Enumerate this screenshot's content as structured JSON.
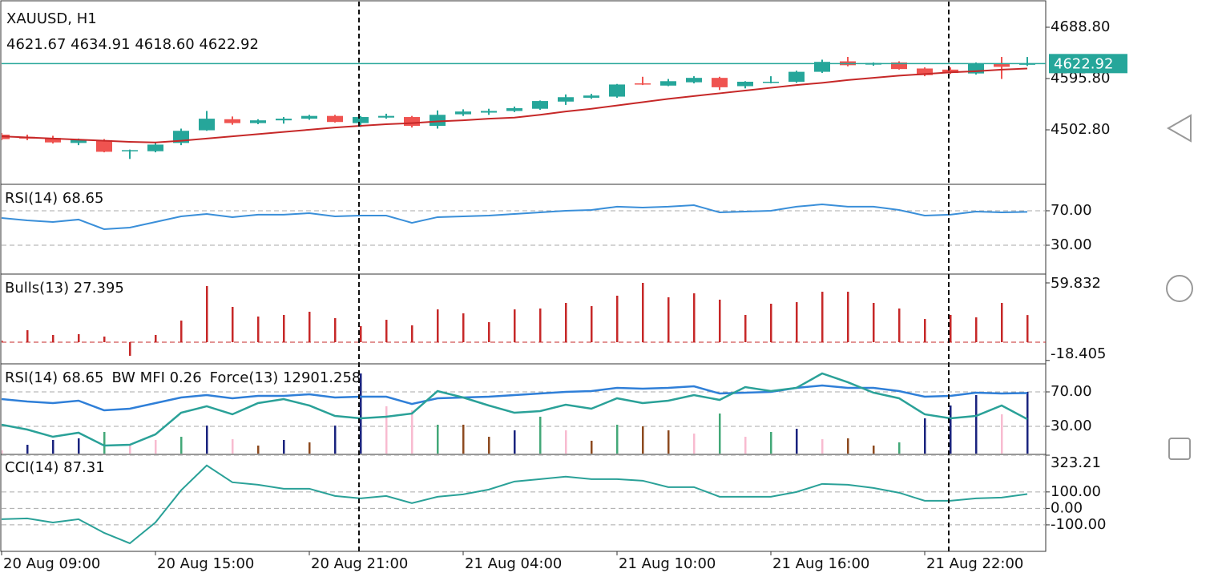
{
  "chart_data": [
    {
      "type": "candlestick",
      "title": "XAUUSD, H1",
      "subtitle": "4621.67 4634.91 4618.60 4622.92",
      "open": [
        4494,
        4490,
        4488,
        4479,
        4484,
        4464,
        4464,
        4479,
        4502,
        4522,
        4515,
        4520,
        4523,
        4528,
        4515,
        4525,
        4526,
        4510,
        4531,
        4534,
        4537,
        4541,
        4554,
        4561,
        4563,
        4587,
        4583,
        4589,
        4597,
        4582,
        4589,
        4590,
        4608,
        4627,
        4621,
        4625,
        4614,
        4612,
        4605,
        4622,
        4621.67
      ],
      "high": [
        4497,
        4494,
        4492,
        4487,
        4486,
        4467,
        4480,
        4505,
        4537,
        4527,
        4522,
        4526,
        4530,
        4530,
        4528,
        4532,
        4528,
        4538,
        4540,
        4541,
        4545,
        4556,
        4567,
        4568,
        4586,
        4599,
        4595,
        4600,
        4599,
        4591,
        4600,
        4610,
        4630,
        4635,
        4625,
        4627,
        4616,
        4616,
        4625,
        4635,
        4634.91
      ],
      "low": [
        4484,
        4484,
        4478,
        4475,
        4462,
        4450,
        4462,
        4475,
        4501,
        4512,
        4513,
        4514,
        4521,
        4516,
        4508,
        4523,
        4507,
        4505,
        4528,
        4530,
        4535,
        4539,
        4548,
        4559,
        4561,
        4584,
        4582,
        4587,
        4575,
        4578,
        4587,
        4588,
        4606,
        4618,
        4619,
        4612,
        4600,
        4604,
        4603,
        4595,
        4618.6
      ],
      "close": [
        4486,
        4487,
        4480,
        4485,
        4463,
        4466,
        4476,
        4501,
        4523,
        4515,
        4520,
        4523,
        4528,
        4517,
        4526,
        4528,
        4510,
        4530,
        4536,
        4537,
        4542,
        4555,
        4562,
        4565,
        4585,
        4585,
        4591,
        4597,
        4580,
        4590,
        4590,
        4608,
        4626,
        4620,
        4624,
        4613,
        4602,
        4606,
        4622,
        4617,
        4622.92
      ],
      "up_color": "#26a69a",
      "down_color": "#ef5350",
      "ma": {
        "color": "#c62828",
        "values": [
          4491,
          4489,
          4487,
          4485,
          4483,
          4481,
          4480,
          4483,
          4487,
          4491,
          4495,
          4499,
          4503,
          4507,
          4510,
          4513,
          4515,
          4518,
          4520,
          4523,
          4525,
          4530,
          4536,
          4541,
          4547,
          4553,
          4559,
          4564,
          4569,
          4574,
          4579,
          4584,
          4588,
          4593,
          4597,
          4601,
          4604,
          4607,
          4609,
          4612,
          4614
        ]
      },
      "price_line_color": "#26a69a",
      "ylim": [
        4406.9,
        4738.2
      ],
      "yticks": [
        {
          "value": 4502.8,
          "label": "4502.80"
        },
        {
          "value": 4595.8,
          "label": "4595.80"
        },
        {
          "value": 4688.8,
          "label": "4688.80"
        }
      ],
      "grid": false
    },
    {
      "type": "line",
      "series": [
        {
          "name": "RSI(14) 68.65",
          "kind": "line",
          "color": "#3a8fd9",
          "values": [
            61.6,
            58.8,
            57.0,
            59.8,
            48.6,
            50.5,
            57.0,
            63.5,
            66.3,
            62.6,
            65.4,
            65.4,
            67.2,
            63.5,
            64.4,
            64.4,
            56.0,
            62.6,
            63.5,
            64.4,
            66.3,
            68.1,
            70.0,
            70.9,
            74.7,
            73.7,
            74.7,
            76.5,
            68.1,
            69.1,
            70.0,
            74.7,
            77.4,
            74.7,
            74.7,
            70.9,
            64.4,
            65.4,
            69.1,
            68.1,
            68.65
          ]
        }
      ],
      "ylim": [
        -1.6,
        98.8
      ],
      "yticks": [
        {
          "value": 30,
          "label": "30.00"
        },
        {
          "value": 70,
          "label": "70.00"
        }
      ],
      "grid": true
    },
    {
      "type": "bar",
      "series": [
        {
          "name": "Bulls(13) 27.395",
          "kind": "bar",
          "color": "#c62828",
          "values": [
            1.6,
            12.1,
            7.3,
            8.1,
            5.7,
            -13.7,
            7.3,
            21.8,
            56.6,
            35.6,
            25.9,
            27.5,
            30.7,
            24.3,
            16.2,
            22.6,
            17.0,
            33.1,
            29.1,
            20.2,
            33.1,
            34.0,
            39.6,
            36.4,
            46.9,
            59.832,
            45.3,
            49.3,
            42.9,
            27.5,
            38.8,
            40.4,
            50.9,
            50.9,
            39.6,
            34.0,
            23.4,
            27.5,
            25.1,
            39.6,
            27.395
          ]
        }
      ],
      "ylim": [
        -20.2,
        67.1
      ],
      "yticks": [
        59.832,
        -18.405
      ],
      "grid": false,
      "zero_line": true
    },
    {
      "type": "mixed",
      "series": [
        {
          "name": "RSI(14) 68.65",
          "kind": "line",
          "color": "#2f7fd8",
          "values": [
            61.6,
            58.8,
            57.0,
            59.8,
            48.6,
            50.5,
            57.0,
            63.5,
            66.3,
            62.6,
            65.4,
            65.4,
            67.2,
            63.5,
            64.4,
            64.4,
            56.0,
            62.6,
            63.5,
            64.4,
            66.3,
            68.1,
            70.0,
            70.9,
            74.7,
            73.7,
            74.7,
            76.5,
            68.1,
            69.1,
            70.0,
            74.7,
            77.4,
            74.7,
            74.7,
            70.9,
            64.4,
            65.4,
            69.1,
            68.1,
            68.65
          ]
        },
        {
          "name": "BW MFI 0.26",
          "kind": "bar",
          "colors": [
            "#f8bbd0",
            "#1a237e",
            "#1a237e",
            "#1a237e",
            "#43a878",
            "#f8bbd0",
            "#f8bbd0",
            "#43a878",
            "#1a237e",
            "#f8bbd0",
            "#8d4a1f",
            "#1a237e",
            "#8d4a1f",
            "#1a237e",
            "#1a237e",
            "#f8bbd0",
            "#f8bbd0",
            "#43a878",
            "#8d4a1f",
            "#8d4a1f",
            "#1a237e",
            "#43a878",
            "#f8bbd0",
            "#8d4a1f",
            "#43a878",
            "#8d4a1f",
            "#8d4a1f",
            "#f8bbd0",
            "#43a878",
            "#f8bbd0",
            "#43a878",
            "#1a237e",
            "#f8bbd0",
            "#8d4a1f",
            "#8d4a1f",
            "#43a878",
            "#1a237e",
            "#1a237e",
            "#1a237e",
            "#f8bbd0",
            "#1a237e"
          ],
          "values": [
            2.1,
            8.6,
            14.2,
            16.1,
            23.5,
            8.6,
            14.2,
            17.9,
            30.9,
            15.1,
            7.7,
            14.2,
            11.4,
            30.9,
            91.4,
            53.3,
            48.6,
            31.9,
            31.9,
            17.9,
            25.4,
            41.2,
            25.4,
            13.3,
            31.9,
            30.0,
            25.4,
            21.6,
            44.9,
            17.9,
            23.5,
            27.2,
            15.1,
            16.1,
            7.7,
            11.4,
            39.3,
            54.2,
            66.3,
            44.0,
            70.0
          ]
        },
        {
          "name": "Force(13) 12901.258",
          "kind": "line",
          "color": "#2aa198",
          "values": [
            31.9,
            26.3,
            17.9,
            22.6,
            7.7,
            8.6,
            20.7,
            45.8,
            53.3,
            44.0,
            57.0,
            61.6,
            54.2,
            42.1,
            39.3,
            41.2,
            44.9,
            70.9,
            63.5,
            54.2,
            45.8,
            47.7,
            55.1,
            50.5,
            62.6,
            57.0,
            59.8,
            66.3,
            60.7,
            75.6,
            70.9,
            74.7,
            91.4,
            81.2,
            69.1,
            62.6,
            44.0,
            39.3,
            42.1,
            54.2,
            38.4
          ]
        }
      ],
      "ylim": [
        -1.6,
        100.7
      ],
      "yticks": [
        {
          "value": 30,
          "label": "30.00"
        },
        {
          "value": 70,
          "label": "70.00"
        }
      ],
      "grid": true
    },
    {
      "type": "line",
      "series": [
        {
          "name": "CCI(14) 87.31",
          "kind": "line",
          "color": "#2aa198",
          "values": [
            -65.9,
            -61.0,
            -85.4,
            -65.9,
            -148.8,
            -212.2,
            -85.4,
            109.8,
            261.0,
            158.5,
            143.9,
            119.5,
            119.5,
            75.6,
            61.0,
            75.6,
            31.7,
            70.7,
            85.4,
            114.6,
            163.4,
            178.0,
            192.7,
            178.0,
            178.0,
            168.3,
            129.3,
            129.3,
            70.7,
            70.7,
            70.7,
            100.0,
            148.8,
            143.9,
            124.4,
            95.1,
            46.3,
            46.3,
            61.0,
            65.9,
            87.31
          ]
        }
      ],
      "ylim": [
        -261.0,
        323.21
      ],
      "yticks": [
        323.21,
        {
          "value": 100,
          "label": "100.00"
        },
        {
          "value": 0,
          "label": "0.00"
        },
        {
          "value": -100,
          "label": "-100.00"
        }
      ],
      "grid": true,
      "categories": [
        "20 Aug 09:00",
        null,
        null,
        null,
        null,
        null,
        "20 Aug 15:00",
        null,
        null,
        null,
        null,
        null,
        "20 Aug 21:00",
        null,
        null,
        null,
        null,
        null,
        "21 Aug 04:00",
        null,
        null,
        null,
        null,
        null,
        "21 Aug 10:00",
        null,
        null,
        null,
        null,
        null,
        "21 Aug 16:00",
        null,
        null,
        null,
        null,
        null,
        "21 Aug 22:00",
        null,
        null,
        null,
        null
      ]
    }
  ]
}
